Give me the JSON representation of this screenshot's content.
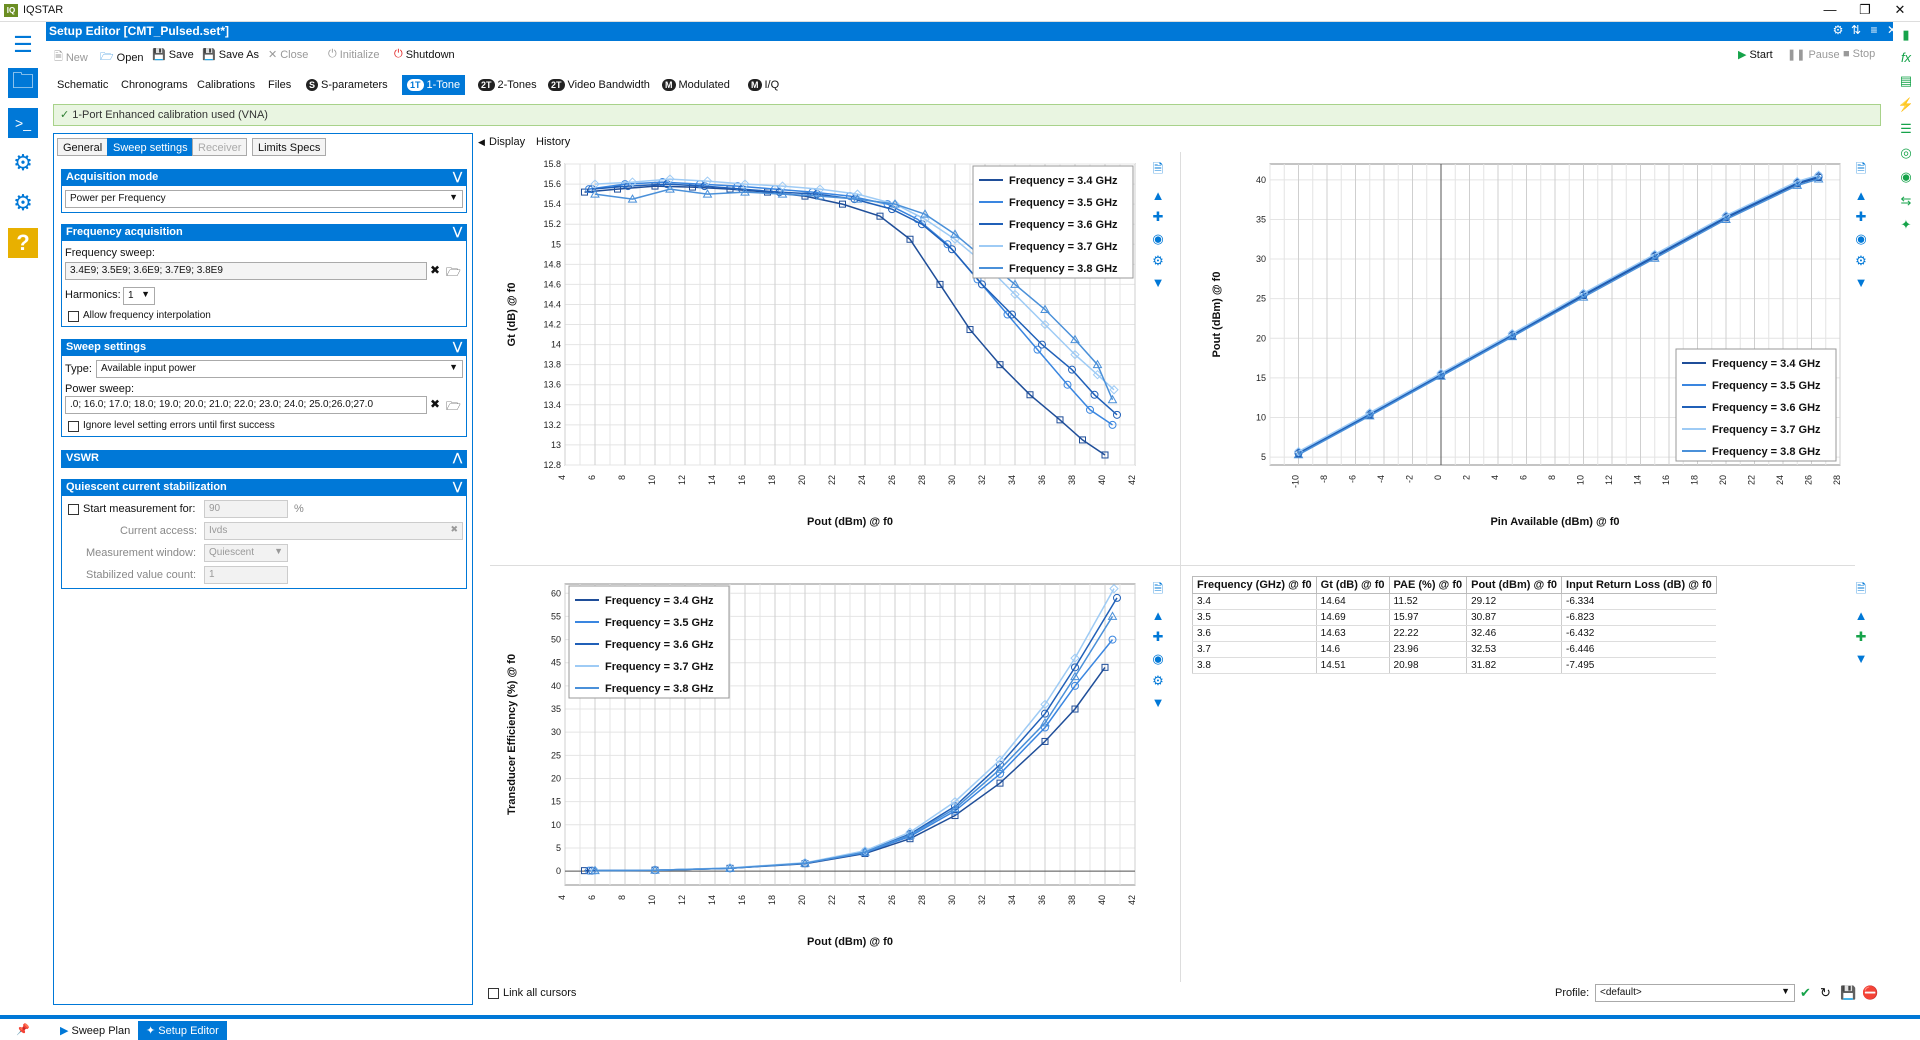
{
  "app": {
    "title": "IQSTAR",
    "logo": "IQ"
  },
  "window": {
    "subtitle": "Setup Editor [CMT_Pulsed.set*]"
  },
  "toolbar": {
    "new": "New",
    "open": "Open",
    "save": "Save",
    "save_as": "Save As",
    "close": "Close",
    "initialize": "Initialize",
    "shutdown": "Shutdown",
    "start": "Start",
    "pause": "Pause",
    "stop": "Stop"
  },
  "main_tabs": [
    {
      "label": "Schematic"
    },
    {
      "label": "Chronograms"
    },
    {
      "label": "Calibrations"
    },
    {
      "label": "Files"
    },
    {
      "label": "S-parameters",
      "badge": "S"
    },
    {
      "label": "1-Tone",
      "badge": "1T"
    },
    {
      "label": "2-Tones",
      "badge": "2T"
    },
    {
      "label": "Video Bandwidth",
      "badge": "2T"
    },
    {
      "label": "Modulated",
      "badge": "M"
    },
    {
      "label": "I/Q",
      "badge": "M"
    }
  ],
  "calibration_notice": "1-Port Enhanced calibration used (VNA)",
  "settings_tabs": [
    "General",
    "Sweep settings",
    "Receiver",
    "Limits Specs"
  ],
  "acquisition_mode": {
    "header": "Acquisition mode",
    "value": "Power per Frequency"
  },
  "frequency_acquisition": {
    "header": "Frequency acquisition",
    "sweep_label": "Frequency sweep:",
    "sweep_value": "3.4E9; 3.5E9; 3.6E9; 3.7E9; 3.8E9",
    "harmonics_label": "Harmonics:",
    "harmonics_value": "1",
    "interp_label": "Allow frequency interpolation"
  },
  "sweep_settings": {
    "header": "Sweep settings",
    "type_label": "Type:",
    "type_value": "Available input power",
    "power_label": "Power sweep:",
    "power_value": ".0; 16.0; 17.0; 18.0; 19.0; 20.0; 21.0; 22.0; 23.0; 24.0; 25.0;26.0;27.0",
    "ignore_label": "Ignore level setting errors until first success"
  },
  "vswr": {
    "header": "VSWR"
  },
  "quiescent": {
    "header": "Quiescent current stabilization",
    "start_label": "Start measurement for:",
    "start_value": "90",
    "start_unit": "%",
    "access_label": "Current access:",
    "access_value": "Ivds",
    "window_label": "Measurement window:",
    "window_value": "Quiescent",
    "count_label": "Stabilized value count:",
    "count_value": "1"
  },
  "view_tabs": [
    "Display",
    "History"
  ],
  "legend_labels": [
    "Frequency = 3.4 GHz",
    "Frequency = 3.5 GHz",
    "Frequency = 3.6 GHz",
    "Frequency = 3.7 GHz",
    "Frequency = 3.8 GHz"
  ],
  "series_colors": [
    "#1f4e99",
    "#3a86e0",
    "#2060b8",
    "#9ecbf5",
    "#4a90d9"
  ],
  "chart_data": [
    {
      "type": "line",
      "xlabel": "Pout (dBm) @ f0",
      "ylabel": "Gt (dB) @ f0",
      "xlim": [
        4,
        42
      ],
      "ylim": [
        12.8,
        15.8
      ],
      "xticks": [
        4,
        6,
        8,
        10,
        12,
        14,
        16,
        18,
        20,
        22,
        24,
        26,
        28,
        30,
        32,
        34,
        36,
        38,
        40,
        42
      ],
      "yticks": [
        12.8,
        13,
        13.2,
        13.4,
        13.6,
        13.8,
        14,
        14.2,
        14.4,
        14.6,
        14.8,
        15,
        15.2,
        15.4,
        15.6,
        15.8
      ],
      "legend_position": "top-right",
      "series": [
        {
          "name": "Frequency = 3.4 GHz",
          "x": [
            5.3,
            7.5,
            10,
            12.5,
            15,
            17.5,
            20,
            22.5,
            25,
            27,
            29,
            31,
            33,
            35,
            37,
            38.5,
            40
          ],
          "y": [
            15.52,
            15.55,
            15.58,
            15.57,
            15.55,
            15.52,
            15.48,
            15.4,
            15.28,
            15.05,
            14.6,
            14.15,
            13.8,
            13.5,
            13.25,
            13.05,
            12.9
          ]
        },
        {
          "name": "Frequency = 3.5 GHz",
          "x": [
            5.6,
            8,
            10.5,
            13,
            15.5,
            18,
            20.5,
            23,
            25.5,
            27.5,
            29.5,
            31.5,
            33.5,
            35.5,
            37.5,
            39,
            40.5
          ],
          "y": [
            15.55,
            15.6,
            15.62,
            15.6,
            15.58,
            15.55,
            15.52,
            15.48,
            15.4,
            15.25,
            15,
            14.65,
            14.3,
            13.95,
            13.6,
            13.35,
            13.2
          ]
        },
        {
          "name": "Frequency = 3.6 GHz",
          "x": [
            5.8,
            8.2,
            10.8,
            13.3,
            15.8,
            18.3,
            20.8,
            23.3,
            25.8,
            27.8,
            29.8,
            31.8,
            33.8,
            35.8,
            37.8,
            39.3,
            40.8
          ],
          "y": [
            15.55,
            15.58,
            15.6,
            15.58,
            15.55,
            15.52,
            15.5,
            15.45,
            15.35,
            15.2,
            14.95,
            14.6,
            14.3,
            14,
            13.75,
            13.5,
            13.3
          ]
        },
        {
          "name": "Frequency = 3.7 GHz",
          "x": [
            6,
            8.5,
            11,
            13.5,
            16,
            18.5,
            21,
            23.5,
            26,
            28,
            30,
            32,
            34,
            36,
            38,
            39.5,
            40.6
          ],
          "y": [
            15.6,
            15.62,
            15.65,
            15.63,
            15.6,
            15.58,
            15.55,
            15.5,
            15.4,
            15.25,
            15.05,
            14.8,
            14.5,
            14.2,
            13.9,
            13.7,
            13.55
          ]
        },
        {
          "name": "Frequency = 3.8 GHz",
          "x": [
            6,
            8.5,
            11,
            13.5,
            16,
            18.5,
            21,
            23.5,
            26,
            28,
            30,
            32,
            34,
            36,
            38,
            39.5,
            40.5
          ],
          "y": [
            15.5,
            15.45,
            15.55,
            15.5,
            15.52,
            15.5,
            15.48,
            15.45,
            15.4,
            15.3,
            15.1,
            14.85,
            14.6,
            14.35,
            14.05,
            13.8,
            13.45
          ]
        }
      ]
    },
    {
      "type": "line",
      "xlabel": "Pin Available (dBm) @ f0",
      "ylabel": "Pout (dBm) @ f0",
      "xlim": [
        -12,
        28
      ],
      "ylim": [
        4,
        42
      ],
      "xticks": [
        -10,
        -8,
        -6,
        -4,
        -2,
        0,
        2,
        4,
        6,
        8,
        10,
        12,
        14,
        16,
        18,
        20,
        22,
        24,
        26,
        28
      ],
      "yticks": [
        5,
        10,
        15,
        20,
        25,
        30,
        35,
        40
      ],
      "legend_position": "bottom-right",
      "series": [
        {
          "name": "Frequency = 3.4 GHz",
          "x": [
            -10,
            -5,
            0,
            5,
            10,
            15,
            20,
            25,
            26.5
          ],
          "y": [
            5.4,
            10.3,
            15.3,
            20.3,
            25.4,
            30.3,
            35.2,
            39.5,
            40.3
          ]
        },
        {
          "name": "Frequency = 3.5 GHz",
          "x": [
            -10,
            -5,
            0,
            5,
            10,
            15,
            20,
            25,
            26.5
          ],
          "y": [
            5.6,
            10.5,
            15.5,
            20.5,
            25.6,
            30.5,
            35.4,
            39.7,
            40.5
          ]
        },
        {
          "name": "Frequency = 3.6 GHz",
          "x": [
            -10,
            -5,
            0,
            5,
            10,
            15,
            20,
            25,
            26.5
          ],
          "y": [
            5.5,
            10.4,
            15.4,
            20.4,
            25.5,
            30.4,
            35.3,
            39.6,
            40.4
          ]
        },
        {
          "name": "Frequency = 3.7 GHz",
          "x": [
            -10,
            -5,
            0,
            5,
            10,
            15,
            20,
            25,
            26.5
          ],
          "y": [
            5.7,
            10.6,
            15.6,
            20.6,
            25.7,
            30.6,
            35.5,
            39.8,
            40.6
          ]
        },
        {
          "name": "Frequency = 3.8 GHz",
          "x": [
            -10,
            -5,
            0,
            5,
            10,
            15,
            20,
            25,
            26.5
          ],
          "y": [
            5.3,
            10.2,
            15.2,
            20.2,
            25.2,
            30.1,
            35,
            39.3,
            40.1
          ]
        }
      ]
    },
    {
      "type": "line",
      "xlabel": "Pout (dBm) @ f0",
      "ylabel": "Transducer Efficiency (%) @ f0",
      "xlim": [
        4,
        42
      ],
      "ylim": [
        -3,
        62
      ],
      "xticks": [
        4,
        6,
        8,
        10,
        12,
        14,
        16,
        18,
        20,
        22,
        24,
        26,
        28,
        30,
        32,
        34,
        36,
        38,
        40,
        42
      ],
      "yticks": [
        0,
        5,
        10,
        15,
        20,
        25,
        30,
        35,
        40,
        45,
        50,
        55,
        60
      ],
      "legend_position": "top-left",
      "series": [
        {
          "name": "Frequency = 3.4 GHz",
          "x": [
            5.3,
            10,
            15,
            20,
            24,
            27,
            30,
            33,
            36,
            38,
            40
          ],
          "y": [
            0.1,
            0.2,
            0.6,
            1.6,
            3.8,
            7,
            12,
            19,
            28,
            35,
            44
          ]
        },
        {
          "name": "Frequency = 3.5 GHz",
          "x": [
            5.6,
            10,
            15,
            20,
            24,
            27,
            30,
            33,
            36,
            38,
            40.5
          ],
          "y": [
            0.1,
            0.2,
            0.6,
            1.7,
            4,
            7.5,
            13,
            21,
            31,
            40,
            50
          ]
        },
        {
          "name": "Frequency = 3.6 GHz",
          "x": [
            5.8,
            10,
            15,
            20,
            24,
            27,
            30,
            33,
            36,
            38,
            40.8
          ],
          "y": [
            0.1,
            0.2,
            0.6,
            1.7,
            4.2,
            8,
            14,
            23,
            34,
            44,
            59
          ]
        },
        {
          "name": "Frequency = 3.7 GHz",
          "x": [
            6,
            10,
            15,
            20,
            24,
            27,
            30,
            33,
            36,
            38,
            40.6
          ],
          "y": [
            0.1,
            0.2,
            0.7,
            1.8,
            4.4,
            8.4,
            15,
            24,
            36,
            46,
            61
          ]
        },
        {
          "name": "Frequency = 3.8 GHz",
          "x": [
            6,
            10,
            15,
            20,
            24,
            27,
            30,
            33,
            36,
            38,
            40.5
          ],
          "y": [
            0.1,
            0.2,
            0.6,
            1.7,
            4.1,
            7.8,
            13.5,
            22,
            32,
            42,
            55
          ]
        }
      ]
    }
  ],
  "table": {
    "headers": [
      "Frequency (GHz) @ f0",
      "Gt (dB) @ f0",
      "PAE (%) @ f0",
      "Pout (dBm) @ f0",
      "Input Return Loss (dB) @ f0"
    ],
    "rows": [
      [
        "3.4",
        "14.64",
        "11.52",
        "29.12",
        "-6.334"
      ],
      [
        "3.5",
        "14.69",
        "15.97",
        "30.87",
        "-6.823"
      ],
      [
        "3.6",
        "14.63",
        "22.22",
        "32.46",
        "-6.432"
      ],
      [
        "3.7",
        "14.6",
        "23.96",
        "32.53",
        "-6.446"
      ],
      [
        "3.8",
        "14.51",
        "20.98",
        "31.82",
        "-7.495"
      ]
    ]
  },
  "footer": {
    "link_cursors": "Link all cursors",
    "profile_label": "Profile:",
    "profile_value": "<default>"
  },
  "bottom_tabs": [
    "Sweep Plan",
    "Setup Editor"
  ]
}
